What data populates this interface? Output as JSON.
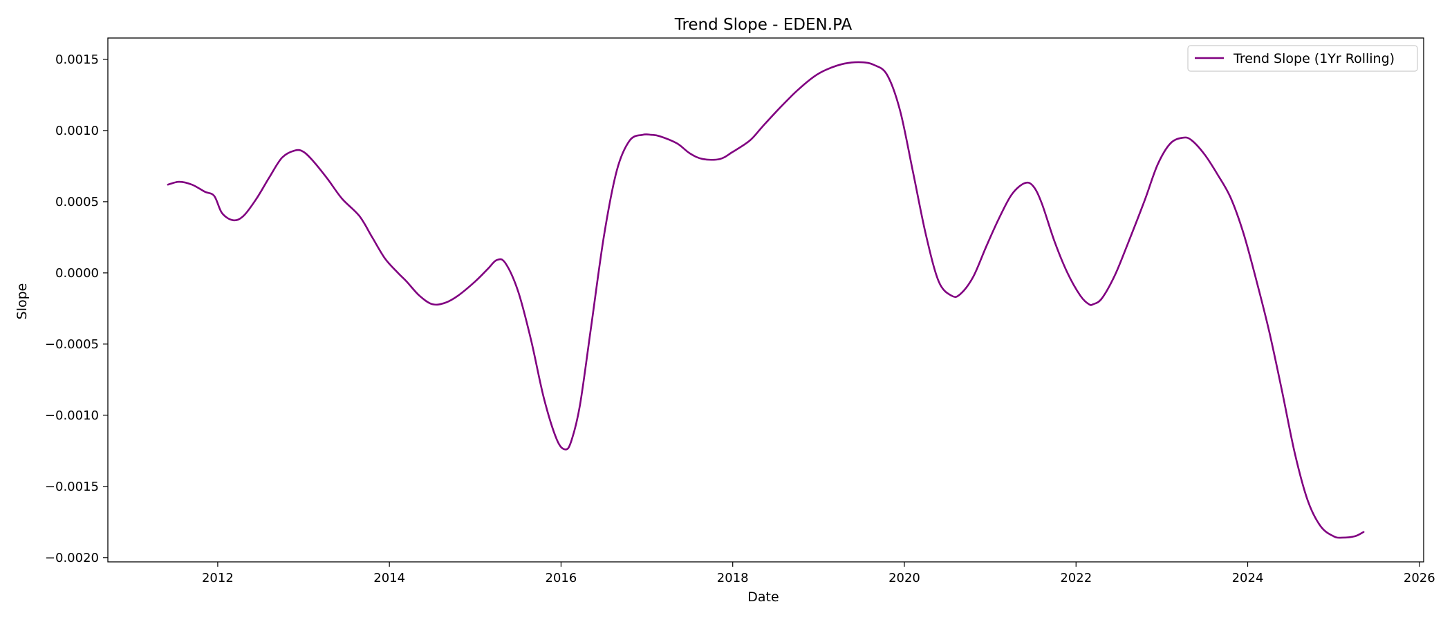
{
  "chart_data": {
    "type": "line",
    "title": "Trend Slope - EDEN.PA",
    "xlabel": "Date",
    "ylabel": "Slope",
    "xlim": [
      2010.72,
      2026.05
    ],
    "ylim": [
      -0.00203,
      0.00165
    ],
    "x_ticks": [
      2012,
      2014,
      2016,
      2018,
      2020,
      2022,
      2024,
      2026
    ],
    "x_tick_labels": [
      "2012",
      "2014",
      "2016",
      "2018",
      "2020",
      "2022",
      "2024",
      "2026"
    ],
    "y_ticks": [
      -0.002,
      -0.0015,
      -0.001,
      -0.0005,
      0.0,
      0.0005,
      0.001,
      0.0015
    ],
    "y_tick_labels": [
      "−0.0020",
      "−0.0015",
      "−0.0010",
      "−0.0005",
      "0.0000",
      "0.0005",
      "0.0010",
      "0.0015"
    ],
    "grid": false,
    "legend_position": "top-right",
    "series": [
      {
        "name": "Trend Slope (1Yr Rolling)",
        "color": "#800080",
        "x": [
          2011.42,
          2011.55,
          2011.7,
          2011.85,
          2011.96,
          2012.05,
          2012.18,
          2012.3,
          2012.45,
          2012.6,
          2012.75,
          2012.9,
          2013.0,
          2013.12,
          2013.28,
          2013.45,
          2013.65,
          2013.8,
          2013.95,
          2014.1,
          2014.2,
          2014.35,
          2014.5,
          2014.65,
          2014.8,
          2015.0,
          2015.15,
          2015.25,
          2015.35,
          2015.5,
          2015.65,
          2015.8,
          2015.95,
          2016.05,
          2016.12,
          2016.22,
          2016.35,
          2016.5,
          2016.65,
          2016.8,
          2016.95,
          2017.05,
          2017.15,
          2017.35,
          2017.5,
          2017.65,
          2017.85,
          2018.0,
          2018.2,
          2018.35,
          2018.55,
          2018.75,
          2018.95,
          2019.1,
          2019.3,
          2019.5,
          2019.65,
          2019.8,
          2019.95,
          2020.1,
          2020.25,
          2020.4,
          2020.55,
          2020.65,
          2020.8,
          2020.95,
          2021.1,
          2021.25,
          2021.4,
          2021.5,
          2021.6,
          2021.75,
          2021.9,
          2022.05,
          2022.15,
          2022.2,
          2022.3,
          2022.45,
          2022.6,
          2022.8,
          2022.95,
          2023.1,
          2023.25,
          2023.35,
          2023.5,
          2023.65,
          2023.8,
          2023.95,
          2024.1,
          2024.25,
          2024.4,
          2024.55,
          2024.7,
          2024.85,
          2025.0,
          2025.1,
          2025.25,
          2025.35
        ],
        "values": [
          0.00062,
          0.00064,
          0.00062,
          0.00057,
          0.00054,
          0.00042,
          0.00037,
          0.0004,
          0.00052,
          0.00067,
          0.00081,
          0.00086,
          0.00085,
          0.00078,
          0.00066,
          0.00052,
          0.0004,
          0.00025,
          0.0001,
          -0.0,
          -6e-05,
          -0.00016,
          -0.00022,
          -0.00021,
          -0.00016,
          -6e-05,
          3e-05,
          9e-05,
          7e-05,
          -0.00013,
          -0.00047,
          -0.00088,
          -0.00117,
          -0.00124,
          -0.00118,
          -0.00093,
          -0.00038,
          0.00026,
          0.00072,
          0.00093,
          0.00097,
          0.00097,
          0.00096,
          0.00091,
          0.00084,
          0.0008,
          0.0008,
          0.00085,
          0.00093,
          0.00103,
          0.00116,
          0.00128,
          0.00138,
          0.00143,
          0.00147,
          0.00148,
          0.00146,
          0.00139,
          0.00114,
          0.00071,
          0.00027,
          -6e-05,
          -0.00016,
          -0.00015,
          -3e-05,
          0.00018,
          0.00038,
          0.00055,
          0.00063,
          0.00061,
          0.00049,
          0.00022,
          0.0,
          -0.00016,
          -0.00022,
          -0.00022,
          -0.00018,
          -2e-05,
          0.0002,
          0.00051,
          0.00076,
          0.00091,
          0.00095,
          0.00093,
          0.00083,
          0.00069,
          0.00053,
          0.00028,
          -5e-05,
          -0.00041,
          -0.00083,
          -0.00127,
          -0.0016,
          -0.00178,
          -0.00185,
          -0.00186,
          -0.00185,
          -0.00182
        ]
      }
    ]
  }
}
